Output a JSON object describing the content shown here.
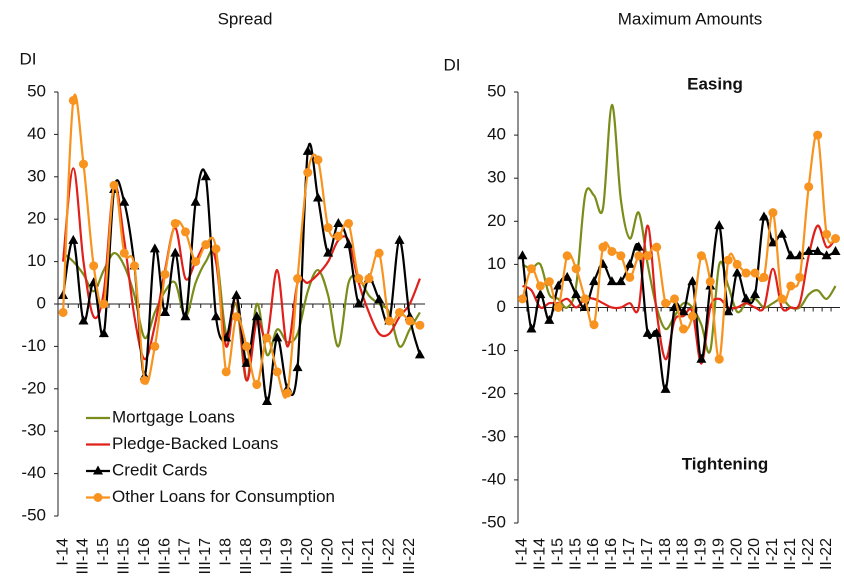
{
  "chart_data": [
    {
      "type": "line",
      "title": "Spread",
      "y_label": "DI",
      "categories": [
        "I-14",
        null,
        "III-14",
        null,
        "I-15",
        null,
        "III-15",
        null,
        "I-16",
        null,
        "III-16",
        null,
        "I-17",
        null,
        "III-17",
        null,
        "I-18",
        null,
        "III-18",
        null,
        "I-19",
        null,
        "III-19",
        null,
        "I-20",
        null,
        "III-20",
        null,
        "I-21",
        null,
        "III-21",
        null,
        "I-22",
        null,
        "III-22",
        null
      ],
      "ylim": [
        -50,
        50
      ],
      "yticks": [
        -50,
        -40,
        -30,
        -20,
        -10,
        0,
        10,
        20,
        30,
        40,
        50
      ],
      "legend": "lower left",
      "series": [
        {
          "name": "Mortgage Loans",
          "color": "#7a8c1a",
          "marker": null,
          "values": [
            12,
            10,
            7,
            3,
            8,
            12,
            9,
            2,
            -8,
            -2,
            3,
            5,
            -3,
            5,
            10,
            12,
            -7,
            0,
            -18,
            0,
            -12,
            -6,
            -9,
            -7,
            3,
            8,
            2,
            -10,
            5,
            6,
            2,
            0,
            -2,
            -10,
            -6,
            -2
          ]
        },
        {
          "name": "Pledge-Backed Loans",
          "color": "#e0201b",
          "marker": null,
          "values": [
            10,
            32,
            10,
            -3,
            3,
            28,
            15,
            -3,
            -13,
            -5,
            8,
            18,
            6,
            10,
            14,
            10,
            -10,
            2,
            -18,
            -4,
            -8,
            8,
            -10,
            5,
            5,
            7,
            10,
            15,
            15,
            5,
            -2,
            -7,
            -7,
            -3,
            0,
            6
          ]
        },
        {
          "name": "Credit Cards",
          "color": "#000000",
          "marker": "triangle",
          "values": [
            2,
            15,
            -4,
            5,
            -7,
            27,
            24,
            9,
            -17,
            13,
            -2,
            12,
            -3,
            24,
            30,
            -3,
            -8,
            2,
            -14,
            -3,
            -23,
            -8,
            -20,
            -15,
            36,
            25,
            12,
            19,
            14,
            0,
            6,
            1,
            -4,
            15,
            -3,
            -12
          ]
        },
        {
          "name": "Other Loans for Consumption",
          "color": "#f7931e",
          "marker": "circle",
          "values": [
            -2,
            48,
            33,
            9,
            0,
            28,
            12,
            9,
            -18,
            -10,
            7,
            19,
            17,
            10,
            14,
            13,
            -16,
            -3,
            -10,
            -19,
            -8,
            -16,
            -21,
            6,
            31,
            34,
            18,
            16,
            19,
            6,
            6,
            12,
            -4,
            -2,
            -4,
            -5
          ]
        }
      ]
    },
    {
      "type": "line",
      "title": "Maximum Amounts",
      "y_label": "DI",
      "categories": [
        "I-14",
        null,
        "II-14",
        null,
        "I-15",
        null,
        "II-15",
        null,
        "I-16",
        null,
        "II-16",
        null,
        "I-17",
        null,
        "II-17",
        null,
        "I-18",
        null,
        "II-18",
        null,
        "I-19",
        null,
        "II-19",
        null,
        "I-20",
        null,
        "II-20",
        null,
        "I-21",
        null,
        "II-21",
        null,
        "I-22",
        null,
        "II-22",
        null
      ],
      "ylim": [
        -50,
        50
      ],
      "yticks": [
        -50,
        -40,
        -30,
        -20,
        -10,
        0,
        10,
        20,
        30,
        40,
        50
      ],
      "annotations": [
        "Easing",
        "Tightening"
      ],
      "series": [
        {
          "color": "#7a8c1a",
          "marker": null,
          "values": [
            10,
            9,
            10,
            3,
            2,
            0,
            5,
            26,
            26,
            23,
            47,
            25,
            16,
            22,
            10,
            0,
            -5,
            -2,
            1,
            0,
            -4,
            -10,
            10,
            5,
            -1,
            1,
            2,
            0,
            1,
            2,
            0,
            0,
            3,
            4,
            2,
            5
          ]
        },
        {
          "color": "#e0201b",
          "marker": null,
          "values": [
            5,
            4,
            0,
            1,
            1,
            2,
            0,
            2,
            2,
            1,
            0,
            0,
            1,
            0,
            19,
            -1,
            -12,
            -3,
            -2,
            -1,
            -13,
            0,
            2,
            0,
            0,
            1,
            0,
            0,
            9,
            0,
            0,
            1,
            12,
            19,
            14,
            16
          ]
        },
        {
          "color": "#000000",
          "marker": "triangle",
          "values": [
            12,
            -5,
            3,
            -3,
            5,
            7,
            3,
            0,
            6,
            10,
            6,
            6,
            10,
            14,
            -6,
            -6,
            -19,
            0,
            -1,
            6,
            -12,
            5,
            19,
            -1,
            8,
            2,
            3,
            21,
            15,
            17,
            12,
            12,
            13,
            13,
            12,
            13
          ]
        },
        {
          "color": "#f7931e",
          "marker": "circle",
          "values": [
            2,
            9,
            5,
            6,
            0,
            12,
            9,
            2,
            -4,
            14,
            13,
            12,
            7,
            12,
            12,
            14,
            1,
            2,
            -5,
            -2,
            12,
            6,
            -12,
            11,
            10,
            8,
            8,
            7,
            22,
            2,
            5,
            7,
            28,
            40,
            17,
            16
          ]
        }
      ]
    }
  ]
}
